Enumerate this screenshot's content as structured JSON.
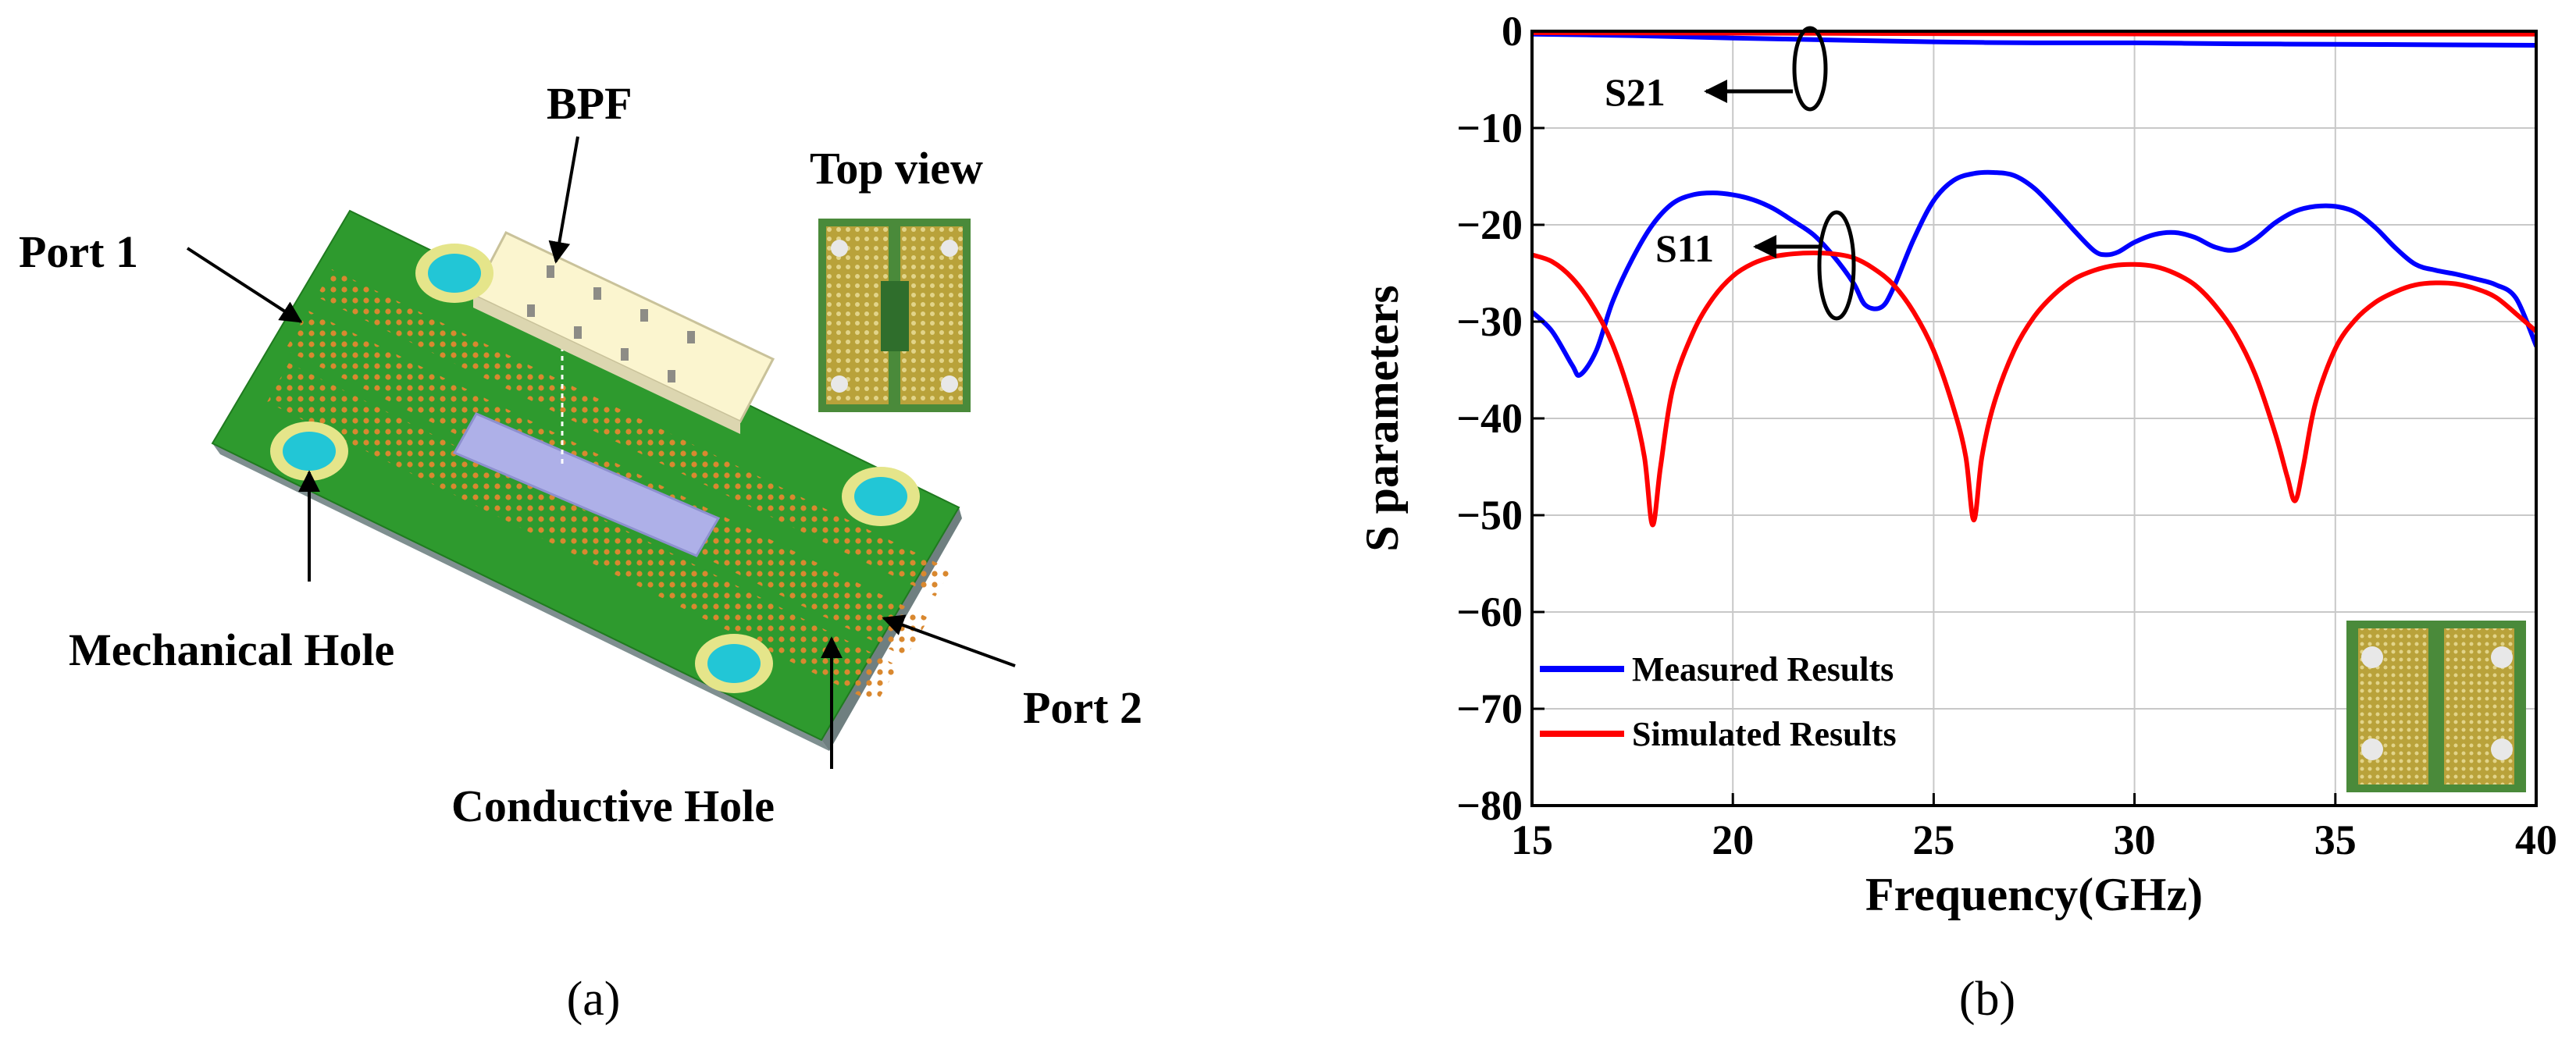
{
  "panel_a": {
    "caption": "(a)",
    "labels": {
      "bpf": "BPF",
      "top_view": "Top view",
      "port1": "Port 1",
      "port2": "Port 2",
      "mechanical_hole": "Mechanical Hole",
      "conductive_hole": "Conductive Hole"
    },
    "colors": {
      "pcb_green": "#2e9a2e",
      "pcb_edge": "#7f8f90",
      "via_orange": "#d9882f",
      "pad_yellow": "#e5e58a",
      "hole_cyan": "#22c6d6",
      "bpf_body": "#fbf5cf",
      "cavity": "#aeb0e8"
    }
  },
  "panel_b": {
    "caption": "(b)",
    "annotations": {
      "s21": "S21",
      "s11": "S11"
    },
    "chart_data": {
      "type": "line",
      "title": "",
      "xlabel": "Frequency(GHz)",
      "ylabel": "S parameters",
      "xlim": [
        15,
        40
      ],
      "ylim": [
        -80,
        0
      ],
      "xticks": [
        15,
        20,
        25,
        30,
        35,
        40
      ],
      "yticks": [
        0,
        -10,
        -20,
        -30,
        -40,
        -50,
        -60,
        -70,
        -80
      ],
      "xtick_labels": [
        "15",
        "20",
        "25",
        "30",
        "35",
        "40"
      ],
      "ytick_labels": [
        "0",
        "−10",
        "−20",
        "−30",
        "−40",
        "−50",
        "−60",
        "−70",
        "−80"
      ],
      "grid": true,
      "legend_position": "bottom-left",
      "series": [
        {
          "name": "Measured Results",
          "group": "S11",
          "color": "#0000ff",
          "x": [
            15,
            15.5,
            16,
            16.2,
            16.6,
            17,
            17.5,
            18,
            18.5,
            19,
            19.5,
            20,
            20.5,
            21,
            21.5,
            22,
            22.5,
            23,
            23.3,
            23.7,
            24,
            24.5,
            25,
            25.5,
            26,
            26.5,
            27,
            27.5,
            28,
            28.5,
            29,
            29.3,
            29.6,
            30,
            30.5,
            31,
            31.5,
            32,
            32.5,
            33,
            33.5,
            34,
            34.5,
            35,
            35.5,
            36,
            36.5,
            37,
            37.5,
            38,
            38.5,
            39,
            39.5,
            40
          ],
          "y": [
            -29,
            -31,
            -34.5,
            -35.5,
            -33,
            -28,
            -23.5,
            -20,
            -17.8,
            -16.9,
            -16.7,
            -16.9,
            -17.4,
            -18.3,
            -19.6,
            -21,
            -23.2,
            -26,
            -28.3,
            -28.5,
            -26.5,
            -21.5,
            -17.5,
            -15.4,
            -14.7,
            -14.6,
            -14.9,
            -16.2,
            -18.3,
            -20.6,
            -22.7,
            -23.1,
            -22.8,
            -21.8,
            -21,
            -20.8,
            -21.3,
            -22.3,
            -22.6,
            -21.5,
            -19.8,
            -18.6,
            -18.1,
            -18.1,
            -18.7,
            -20.3,
            -22.4,
            -24.1,
            -24.7,
            -25.1,
            -25.6,
            -26.2,
            -27.6,
            -32.5
          ]
        },
        {
          "name": "Simulated Results",
          "group": "S11",
          "color": "#ff0000",
          "x": [
            15,
            15.5,
            16,
            16.5,
            17,
            17.5,
            17.8,
            18,
            18.2,
            18.5,
            19,
            19.5,
            20,
            20.5,
            21,
            21.5,
            22,
            22.5,
            23,
            23.5,
            24,
            24.5,
            25,
            25.5,
            25.8,
            26,
            26.2,
            26.5,
            27,
            27.5,
            28,
            28.5,
            29,
            29.5,
            30,
            30.5,
            31,
            31.5,
            32,
            32.5,
            33,
            33.5,
            33.8,
            34,
            34.2,
            34.5,
            35,
            35.5,
            36,
            36.5,
            37,
            37.5,
            38,
            38.5,
            39,
            39.5,
            40
          ],
          "y": [
            -23.1,
            -23.8,
            -25.5,
            -28.3,
            -32.3,
            -38.5,
            -44,
            -51,
            -45,
            -37,
            -31.2,
            -27.6,
            -25.3,
            -24,
            -23.3,
            -23,
            -22.9,
            -23,
            -23.4,
            -24.5,
            -26.2,
            -29,
            -33,
            -39,
            -44,
            -50.5,
            -44,
            -38.5,
            -33,
            -29.5,
            -27.2,
            -25.6,
            -24.7,
            -24.2,
            -24.1,
            -24.3,
            -25,
            -26.2,
            -28.3,
            -31.2,
            -35.4,
            -41.5,
            -46,
            -48.5,
            -45,
            -38.5,
            -32.8,
            -29.8,
            -28,
            -26.9,
            -26.2,
            -26,
            -26.1,
            -26.6,
            -27.5,
            -29.2,
            -31
          ]
        },
        {
          "name": "",
          "group": "S21",
          "color": "#0000ff",
          "x": [
            15,
            17.5,
            20,
            22.5,
            25,
            27.5,
            30,
            32.5,
            35,
            37.5,
            40
          ],
          "y": [
            -0.3,
            -0.45,
            -0.7,
            -0.9,
            -1.1,
            -1.2,
            -1.2,
            -1.3,
            -1.35,
            -1.4,
            -1.45
          ]
        },
        {
          "name": "",
          "group": "S21",
          "color": "#ff0000",
          "x": [
            15,
            20,
            25,
            30,
            35,
            40
          ],
          "y": [
            -0.15,
            -0.2,
            -0.25,
            -0.28,
            -0.3,
            -0.3
          ]
        }
      ]
    }
  }
}
